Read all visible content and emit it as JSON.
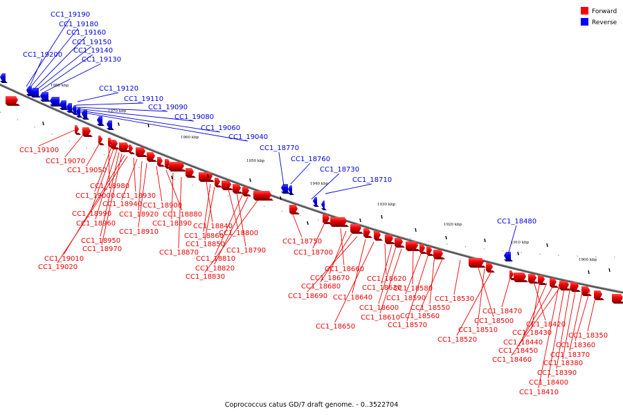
{
  "legend": [
    {
      "label": "Forward",
      "color": "#ff0000"
    },
    {
      "label": "Reverse",
      "color": "#0000ff"
    }
  ],
  "caption": "Coprococcus catus GD/7 draft genome. - 0..3522704",
  "scale_labels": [
    "1980 kbp",
    "1970 kbp",
    "1960 kbp",
    "1950 kbp",
    "1940 kbp",
    "1930 kbp",
    "1920 kbp",
    "1910 kbp",
    "1900 kbp"
  ],
  "forward_genes": [
    "CC1_19100",
    "CC1_19070",
    "CC1_19050",
    "CC1_18980",
    "CC1_19000",
    "CC1_18990",
    "CC1_18960",
    "CC1_18950",
    "CC1_18970",
    "CC1_19010",
    "CC1_19020",
    "CC1_18930",
    "CC1_18940",
    "CC1_18920",
    "CC1_18910",
    "CC1_18900",
    "CC1_18880",
    "CC1_18890",
    "CC1_18870",
    "CC1_18840",
    "CC1_18860",
    "CC1_18850",
    "CC1_18800",
    "CC1_18790",
    "CC1_18810",
    "CC1_18820",
    "CC1_18830",
    "CC1_18750",
    "CC1_18700",
    "CC1_18660",
    "CC1_18670",
    "CC1_18680",
    "CC1_18690",
    "CC1_18640",
    "CC1_18650",
    "CC1_18620",
    "CC1_18630",
    "CC1_18600",
    "CC1_18610",
    "CC1_18580",
    "CC1_18590",
    "CC1_18570",
    "CC1_18550",
    "CC1_18560",
    "CC1_18530",
    "CC1_18500",
    "CC1_18510",
    "CC1_18520",
    "CC1_18470",
    "CC1_18420",
    "CC1_18430",
    "CC1_18440",
    "CC1_18450",
    "CC1_18460",
    "CC1_18350",
    "CC1_18360",
    "CC1_18370",
    "CC1_18380",
    "CC1_18390",
    "CC1_18400",
    "CC1_18410"
  ],
  "reverse_genes": [
    "CC1_19190",
    "CC1_19180",
    "CC1_19160",
    "CC1_19150",
    "CC1_19140",
    "CC1_19200",
    "CC1_19130",
    "CC1_19120",
    "CC1_19110",
    "CC1_19090",
    "CC1_19080",
    "CC1_19060",
    "CC1_19040",
    "CC1_18770",
    "CC1_18760",
    "CC1_18730",
    "CC1_18710",
    "CC1_18480"
  ]
}
